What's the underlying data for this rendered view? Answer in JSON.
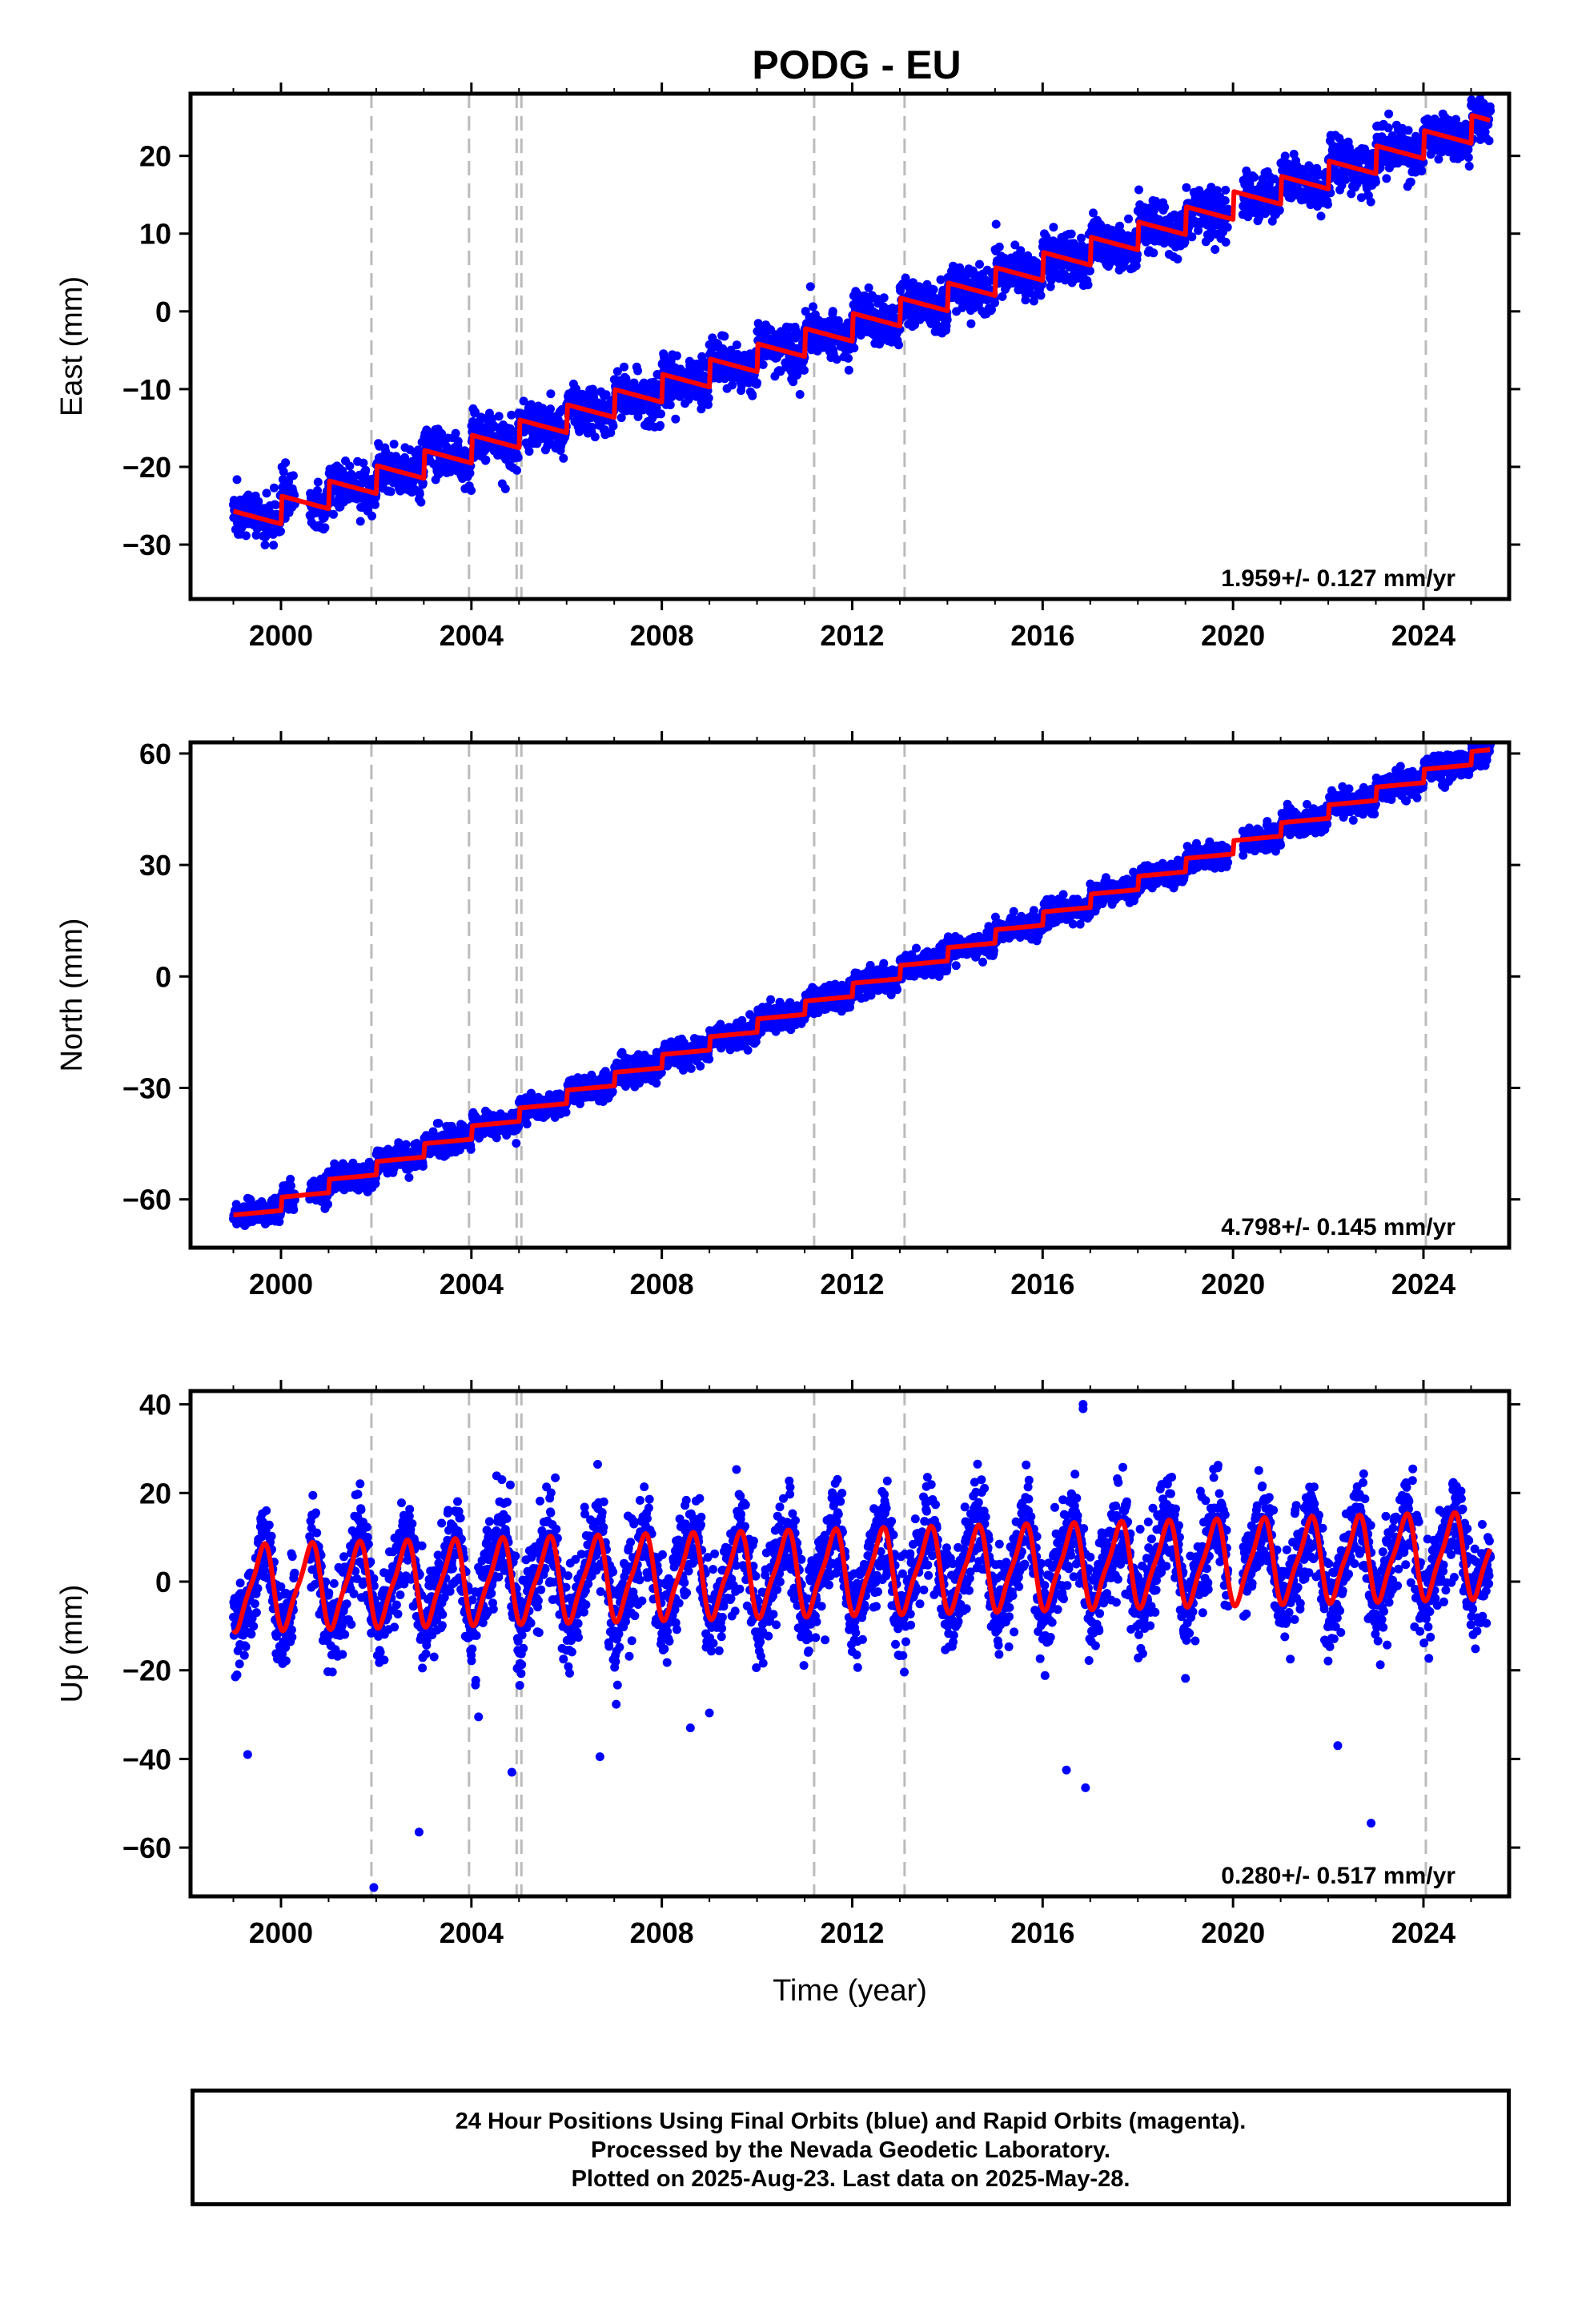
{
  "title": "PODG - EU",
  "footer": {
    "line1": "24 Hour Positions Using Final Orbits (blue) and Rapid Orbits (magenta).",
    "line2": "Processed by the Nevada Geodetic Laboratory.",
    "line3": "Plotted on 2025-Aug-23. Last data on 2025-May-28."
  },
  "colors": {
    "final_orbits": "#0000ff",
    "model": "#ff0000",
    "breaks": "#bbbbbb"
  },
  "chart_data": [
    {
      "type": "scatter",
      "component": "east",
      "ylabel": "East (mm)",
      "xlim": [
        1998.1,
        2025.8
      ],
      "ylim": [
        -37,
        28
      ],
      "xticks": [
        2000,
        2004,
        2008,
        2012,
        2016,
        2020,
        2024
      ],
      "yticks": [
        -30,
        -20,
        -10,
        0,
        10,
        20
      ],
      "grid": false,
      "start_year": 1999.0,
      "end_year": 2025.41,
      "trend": {
        "value_at_start": -27.5,
        "rate_mm_per_yr": 1.959
      },
      "annual_amplitude": 1.8,
      "scatter_sd": 1.5,
      "breaks": [
        2001.9,
        2003.95,
        2004.95,
        2005.05,
        2011.2,
        2013.1,
        2024.05
      ],
      "rate_text": "1.959+/- 0.127 mm/yr"
    },
    {
      "type": "scatter",
      "component": "north",
      "ylabel": "North (mm)",
      "xlim": [
        1998.1,
        2025.8
      ],
      "ylim": [
        -73,
        63
      ],
      "xticks": [
        2000,
        2004,
        2008,
        2012,
        2016,
        2020,
        2024
      ],
      "yticks": [
        -60,
        -30,
        0,
        30,
        60
      ],
      "grid": false,
      "start_year": 1999.0,
      "end_year": 2025.41,
      "trend": {
        "value_at_start": -66.0,
        "rate_mm_per_yr": 4.798
      },
      "annual_amplitude": 1.8,
      "scatter_sd": 1.7,
      "breaks": [
        2001.9,
        2003.95,
        2004.95,
        2005.05,
        2011.2,
        2013.1,
        2024.05
      ],
      "rate_text": "4.798+/- 0.145 mm/yr"
    },
    {
      "type": "scatter",
      "component": "up",
      "ylabel": "Up (mm)",
      "xlabel": "Time (year)",
      "xlim": [
        1998.1,
        2025.8
      ],
      "ylim": [
        -71,
        43
      ],
      "xticks": [
        2000,
        2004,
        2008,
        2012,
        2016,
        2020,
        2024
      ],
      "yticks": [
        -60,
        -40,
        -20,
        0,
        20,
        40
      ],
      "grid": false,
      "start_year": 1999.0,
      "end_year": 2025.41,
      "trend": {
        "value_at_start": -1.5,
        "rate_mm_per_yr": 0.28
      },
      "annual_amplitude": 9.0,
      "scatter_sd": 5.5,
      "breaks": [
        2001.9,
        2003.95,
        2004.95,
        2005.05,
        2011.2,
        2013.1,
        2024.05
      ],
      "rate_text": "0.280+/- 0.517 mm/yr",
      "outliers": [
        {
          "x": 1999.3,
          "y": -39
        },
        {
          "x": 2001.95,
          "y": -69
        },
        {
          "x": 2002.9,
          "y": -56.5
        },
        {
          "x": 2004.85,
          "y": -43
        },
        {
          "x": 2006.7,
          "y": -39.5
        },
        {
          "x": 2016.5,
          "y": -42.5
        },
        {
          "x": 2016.9,
          "y": -46.5
        },
        {
          "x": 2016.85,
          "y": 40
        },
        {
          "x": 2016.85,
          "y": 39
        },
        {
          "x": 2022.2,
          "y": -37
        },
        {
          "x": 2022.9,
          "y": -54.5
        },
        {
          "x": 2004.15,
          "y": -30.5
        },
        {
          "x": 2008.6,
          "y": -33
        }
      ]
    }
  ]
}
